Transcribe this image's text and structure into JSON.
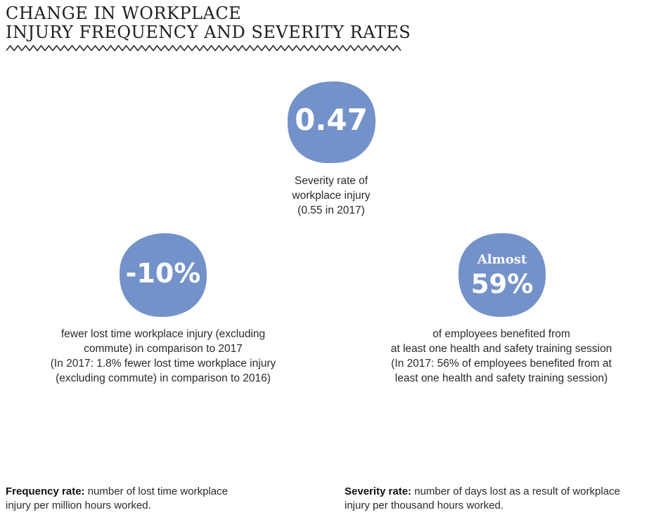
{
  "title": {
    "line1": "CHANGE IN WORKPLACE",
    "line2": "INJURY FREQUENCY AND SEVERITY RATES"
  },
  "accent_color": "#7392c9",
  "severity": {
    "value": "0.47",
    "desc_lines": [
      "Severity rate of",
      "workplace injury",
      "(0.55 in 2017)"
    ]
  },
  "frequency": {
    "value": "-10%",
    "desc_lines": [
      "fewer lost time workplace injury (excluding",
      "commute) in comparison to 2017",
      "(In 2017: 1.8% fewer lost time workplace injury",
      "(excluding commute) in comparison to 2016)"
    ]
  },
  "training": {
    "prefix": "Almost",
    "value": "59%",
    "desc_lines": [
      "of employees benefited from",
      "at least one health and safety training session",
      "(In 2017: 56% of employees benefited from at",
      "least one health and safety training session)"
    ]
  },
  "footnotes": {
    "frequency": {
      "term": "Frequency rate:",
      "line1": " number of lost time workplace",
      "line2": "injury per million hours worked."
    },
    "severity": {
      "term": "Severity rate:",
      "line1": " number of days lost as a result of workplace",
      "line2": "injury per thousand hours worked."
    }
  }
}
